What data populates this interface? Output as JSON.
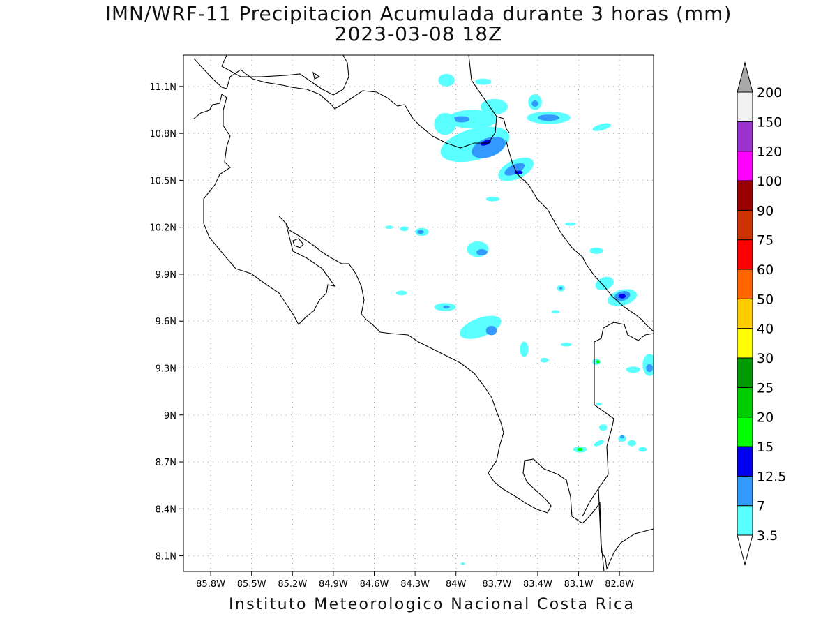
{
  "map": {
    "title": "IMN/WRF-11 Precipitacion Acumulada durante 3 horas (mm)",
    "subtitle": "2023-03-08 18Z",
    "footer": "Instituto Meteorologico Nacional Costa Rica",
    "lon_range": [
      -86.0,
      -82.55
    ],
    "lat_range": [
      8.0,
      11.3
    ],
    "lon_ticks": [
      {
        "label": "85.8W",
        "value": -85.8
      },
      {
        "label": "85.5W",
        "value": -85.5
      },
      {
        "label": "85.2W",
        "value": -85.2
      },
      {
        "label": "84.9W",
        "value": -84.9
      },
      {
        "label": "84.6W",
        "value": -84.6
      },
      {
        "label": "84.3W",
        "value": -84.3
      },
      {
        "label": "84W",
        "value": -84.0
      },
      {
        "label": "83.7W",
        "value": -83.7
      },
      {
        "label": "83.4W",
        "value": -83.4
      },
      {
        "label": "83.1W",
        "value": -83.1
      },
      {
        "label": "82.8W",
        "value": -82.8
      }
    ],
    "lat_ticks": [
      {
        "label": "11.1N",
        "value": 11.1
      },
      {
        "label": "10.8N",
        "value": 10.8
      },
      {
        "label": "10.5N",
        "value": 10.5
      },
      {
        "label": "10.2N",
        "value": 10.2
      },
      {
        "label": "9.9N",
        "value": 9.9
      },
      {
        "label": "9.6N",
        "value": 9.6
      },
      {
        "label": "9.3N",
        "value": 9.3
      },
      {
        "label": "9N",
        "value": 9.0
      },
      {
        "label": "8.7N",
        "value": 8.7
      },
      {
        "label": "8.4N",
        "value": 8.4
      },
      {
        "label": "8.1N",
        "value": 8.1
      }
    ]
  },
  "colorbar": {
    "levels": [
      "3.5",
      "7",
      "12.5",
      "15",
      "20",
      "25",
      "30",
      "40",
      "50",
      "60",
      "75",
      "90",
      "100",
      "120",
      "150",
      "200"
    ],
    "colors": [
      "#5affff",
      "#3399ff",
      "#0000ee",
      "#00ff00",
      "#00cc00",
      "#009900",
      "#ffff00",
      "#ffcc00",
      "#ff6600",
      "#ff0000",
      "#cc3300",
      "#990000",
      "#ff00ff",
      "#9933cc",
      "#f2f2f2"
    ],
    "top_arrow_color": "#a8a8a8",
    "bottom_arrow_color": "#ffffff"
  },
  "rain_cells": [
    {
      "lon": -83.86,
      "lat": 10.73,
      "rx": 0.26,
      "ry": 0.1,
      "rot": -15,
      "level": 0
    },
    {
      "lon": -83.76,
      "lat": 10.71,
      "rx": 0.13,
      "ry": 0.06,
      "rot": -20,
      "level": 1
    },
    {
      "lon": -83.78,
      "lat": 10.74,
      "rx": 0.04,
      "ry": 0.015,
      "rot": -20,
      "level": 2
    },
    {
      "lon": -83.56,
      "lat": 10.57,
      "rx": 0.14,
      "ry": 0.06,
      "rot": -25,
      "level": 0
    },
    {
      "lon": -83.57,
      "lat": 10.57,
      "rx": 0.08,
      "ry": 0.03,
      "rot": -25,
      "level": 1
    },
    {
      "lon": -83.54,
      "lat": 10.55,
      "rx": 0.03,
      "ry": 0.012,
      "rot": 0,
      "level": 2
    },
    {
      "lon": -83.88,
      "lat": 10.89,
      "rx": 0.18,
      "ry": 0.06,
      "rot": 0,
      "level": 0
    },
    {
      "lon": -83.96,
      "lat": 10.89,
      "rx": 0.06,
      "ry": 0.02,
      "rot": 0,
      "level": 1
    },
    {
      "lon": -83.72,
      "lat": 10.97,
      "rx": 0.1,
      "ry": 0.05,
      "rot": 0,
      "level": 0
    },
    {
      "lon": -84.08,
      "lat": 10.86,
      "rx": 0.08,
      "ry": 0.07,
      "rot": 0,
      "level": 0
    },
    {
      "lon": -83.32,
      "lat": 10.9,
      "rx": 0.16,
      "ry": 0.04,
      "rot": 0,
      "level": 0
    },
    {
      "lon": -83.32,
      "lat": 10.9,
      "rx": 0.08,
      "ry": 0.02,
      "rot": 0,
      "level": 1
    },
    {
      "lon": -83.42,
      "lat": 11.0,
      "rx": 0.05,
      "ry": 0.05,
      "rot": 0,
      "level": 0
    },
    {
      "lon": -83.42,
      "lat": 10.99,
      "rx": 0.025,
      "ry": 0.02,
      "rot": 0,
      "level": 1
    },
    {
      "lon": -84.07,
      "lat": 11.14,
      "rx": 0.06,
      "ry": 0.04,
      "rot": 0,
      "level": 0
    },
    {
      "lon": -83.8,
      "lat": 11.13,
      "rx": 0.06,
      "ry": 0.02,
      "rot": 0,
      "level": 0
    },
    {
      "lon": -82.93,
      "lat": 10.84,
      "rx": 0.07,
      "ry": 0.02,
      "rot": -15,
      "level": 0
    },
    {
      "lon": -83.73,
      "lat": 10.38,
      "rx": 0.05,
      "ry": 0.015,
      "rot": 0,
      "level": 0
    },
    {
      "lon": -83.84,
      "lat": 10.06,
      "rx": 0.08,
      "ry": 0.05,
      "rot": 0,
      "level": 0
    },
    {
      "lon": -83.81,
      "lat": 10.04,
      "rx": 0.04,
      "ry": 0.02,
      "rot": 0,
      "level": 1
    },
    {
      "lon": -84.25,
      "lat": 10.17,
      "rx": 0.05,
      "ry": 0.025,
      "rot": 0,
      "level": 0
    },
    {
      "lon": -84.26,
      "lat": 10.17,
      "rx": 0.025,
      "ry": 0.012,
      "rot": 0,
      "level": 1
    },
    {
      "lon": -84.38,
      "lat": 10.19,
      "rx": 0.03,
      "ry": 0.015,
      "rot": 0,
      "level": 0
    },
    {
      "lon": -84.49,
      "lat": 10.2,
      "rx": 0.03,
      "ry": 0.01,
      "rot": 0,
      "level": 0
    },
    {
      "lon": -83.16,
      "lat": 10.22,
      "rx": 0.04,
      "ry": 0.01,
      "rot": 0,
      "level": 0
    },
    {
      "lon": -82.97,
      "lat": 10.05,
      "rx": 0.05,
      "ry": 0.02,
      "rot": 0,
      "level": 0
    },
    {
      "lon": -82.91,
      "lat": 9.84,
      "rx": 0.07,
      "ry": 0.04,
      "rot": -20,
      "level": 0
    },
    {
      "lon": -82.78,
      "lat": 9.75,
      "rx": 0.11,
      "ry": 0.05,
      "rot": -15,
      "level": 0
    },
    {
      "lon": -82.78,
      "lat": 9.76,
      "rx": 0.06,
      "ry": 0.03,
      "rot": -15,
      "level": 1
    },
    {
      "lon": -82.78,
      "lat": 9.76,
      "rx": 0.025,
      "ry": 0.015,
      "rot": 0,
      "level": 2
    },
    {
      "lon": -83.23,
      "lat": 9.81,
      "rx": 0.03,
      "ry": 0.02,
      "rot": 0,
      "level": 0
    },
    {
      "lon": -83.23,
      "lat": 9.81,
      "rx": 0.012,
      "ry": 0.008,
      "rot": 0,
      "level": 1
    },
    {
      "lon": -84.4,
      "lat": 9.78,
      "rx": 0.04,
      "ry": 0.015,
      "rot": 0,
      "level": 0
    },
    {
      "lon": -84.08,
      "lat": 9.69,
      "rx": 0.08,
      "ry": 0.025,
      "rot": 0,
      "level": 0
    },
    {
      "lon": -84.07,
      "lat": 9.69,
      "rx": 0.025,
      "ry": 0.01,
      "rot": 0,
      "level": 1
    },
    {
      "lon": -83.82,
      "lat": 9.56,
      "rx": 0.16,
      "ry": 0.06,
      "rot": -20,
      "level": 0
    },
    {
      "lon": -83.74,
      "lat": 9.54,
      "rx": 0.04,
      "ry": 0.03,
      "rot": 0,
      "level": 1
    },
    {
      "lon": -83.5,
      "lat": 9.42,
      "rx": 0.03,
      "ry": 0.05,
      "rot": 0,
      "level": 0
    },
    {
      "lon": -83.35,
      "lat": 9.35,
      "rx": 0.03,
      "ry": 0.015,
      "rot": 0,
      "level": 0
    },
    {
      "lon": -82.97,
      "lat": 9.34,
      "rx": 0.03,
      "ry": 0.02,
      "rot": 0,
      "level": 0
    },
    {
      "lon": -82.96,
      "lat": 9.34,
      "rx": 0.012,
      "ry": 0.01,
      "rot": 0,
      "level": 3
    },
    {
      "lon": -82.7,
      "lat": 9.29,
      "rx": 0.05,
      "ry": 0.02,
      "rot": 0,
      "level": 0
    },
    {
      "lon": -82.58,
      "lat": 9.32,
      "rx": 0.05,
      "ry": 0.07,
      "rot": 0,
      "level": 0
    },
    {
      "lon": -82.58,
      "lat": 9.3,
      "rx": 0.025,
      "ry": 0.025,
      "rot": 0,
      "level": 1
    },
    {
      "lon": -82.95,
      "lat": 9.07,
      "rx": 0.02,
      "ry": 0.01,
      "rot": 0,
      "level": 0
    },
    {
      "lon": -82.92,
      "lat": 8.92,
      "rx": 0.03,
      "ry": 0.02,
      "rot": 0,
      "level": 0
    },
    {
      "lon": -82.78,
      "lat": 8.85,
      "rx": 0.03,
      "ry": 0.02,
      "rot": 0,
      "level": 0
    },
    {
      "lon": -82.78,
      "lat": 8.86,
      "rx": 0.015,
      "ry": 0.01,
      "rot": 0,
      "level": 1
    },
    {
      "lon": -82.71,
      "lat": 8.82,
      "rx": 0.03,
      "ry": 0.02,
      "rot": 0,
      "level": 0
    },
    {
      "lon": -82.63,
      "lat": 8.78,
      "rx": 0.03,
      "ry": 0.015,
      "rot": 0,
      "level": 0
    },
    {
      "lon": -83.09,
      "lat": 8.78,
      "rx": 0.05,
      "ry": 0.02,
      "rot": 0,
      "level": 0
    },
    {
      "lon": -83.09,
      "lat": 8.78,
      "rx": 0.02,
      "ry": 0.01,
      "rot": 0,
      "level": 3
    },
    {
      "lon": -82.95,
      "lat": 8.82,
      "rx": 0.04,
      "ry": 0.015,
      "rot": -25,
      "level": 0
    },
    {
      "lon": -83.19,
      "lat": 9.45,
      "rx": 0.04,
      "ry": 0.012,
      "rot": 0,
      "level": 0
    },
    {
      "lon": -83.27,
      "lat": 9.66,
      "rx": 0.03,
      "ry": 0.01,
      "rot": 0,
      "level": 0
    },
    {
      "lon": -83.95,
      "lat": 8.05,
      "rx": 0.015,
      "ry": 0.008,
      "rot": 0,
      "level": 0
    }
  ]
}
